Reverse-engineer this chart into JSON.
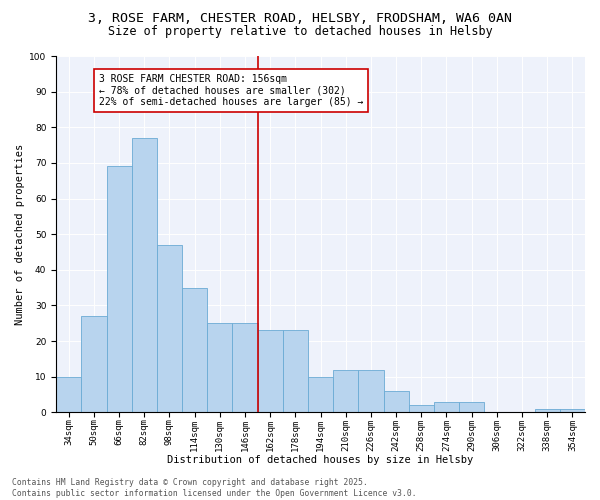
{
  "title_line1": "3, ROSE FARM, CHESTER ROAD, HELSBY, FRODSHAM, WA6 0AN",
  "title_line2": "Size of property relative to detached houses in Helsby",
  "xlabel": "Distribution of detached houses by size in Helsby",
  "ylabel": "Number of detached properties",
  "categories": [
    "34sqm",
    "50sqm",
    "66sqm",
    "82sqm",
    "98sqm",
    "114sqm",
    "130sqm",
    "146sqm",
    "162sqm",
    "178sqm",
    "194sqm",
    "210sqm",
    "226sqm",
    "242sqm",
    "258sqm",
    "274sqm",
    "290sqm",
    "306sqm",
    "322sqm",
    "338sqm",
    "354sqm"
  ],
  "values": [
    10,
    27,
    69,
    77,
    47,
    35,
    25,
    25,
    23,
    23,
    10,
    12,
    12,
    6,
    2,
    3,
    3,
    0,
    0,
    1,
    1
  ],
  "bar_color": "#b8d4ee",
  "bar_edge_color": "#6aaad4",
  "bar_width": 1.0,
  "vline_color": "#cc0000",
  "annotation_text": "3 ROSE FARM CHESTER ROAD: 156sqm\n← 78% of detached houses are smaller (302)\n22% of semi-detached houses are larger (85) →",
  "ylim": [
    0,
    100
  ],
  "yticks": [
    0,
    10,
    20,
    30,
    40,
    50,
    60,
    70,
    80,
    90,
    100
  ],
  "background_color": "#eef2fb",
  "footer_line1": "Contains HM Land Registry data © Crown copyright and database right 2025.",
  "footer_line2": "Contains public sector information licensed under the Open Government Licence v3.0.",
  "title_fontsize": 9.5,
  "subtitle_fontsize": 8.5,
  "axis_label_fontsize": 7.5,
  "tick_fontsize": 6.5,
  "annotation_fontsize": 7,
  "footer_fontsize": 5.8
}
